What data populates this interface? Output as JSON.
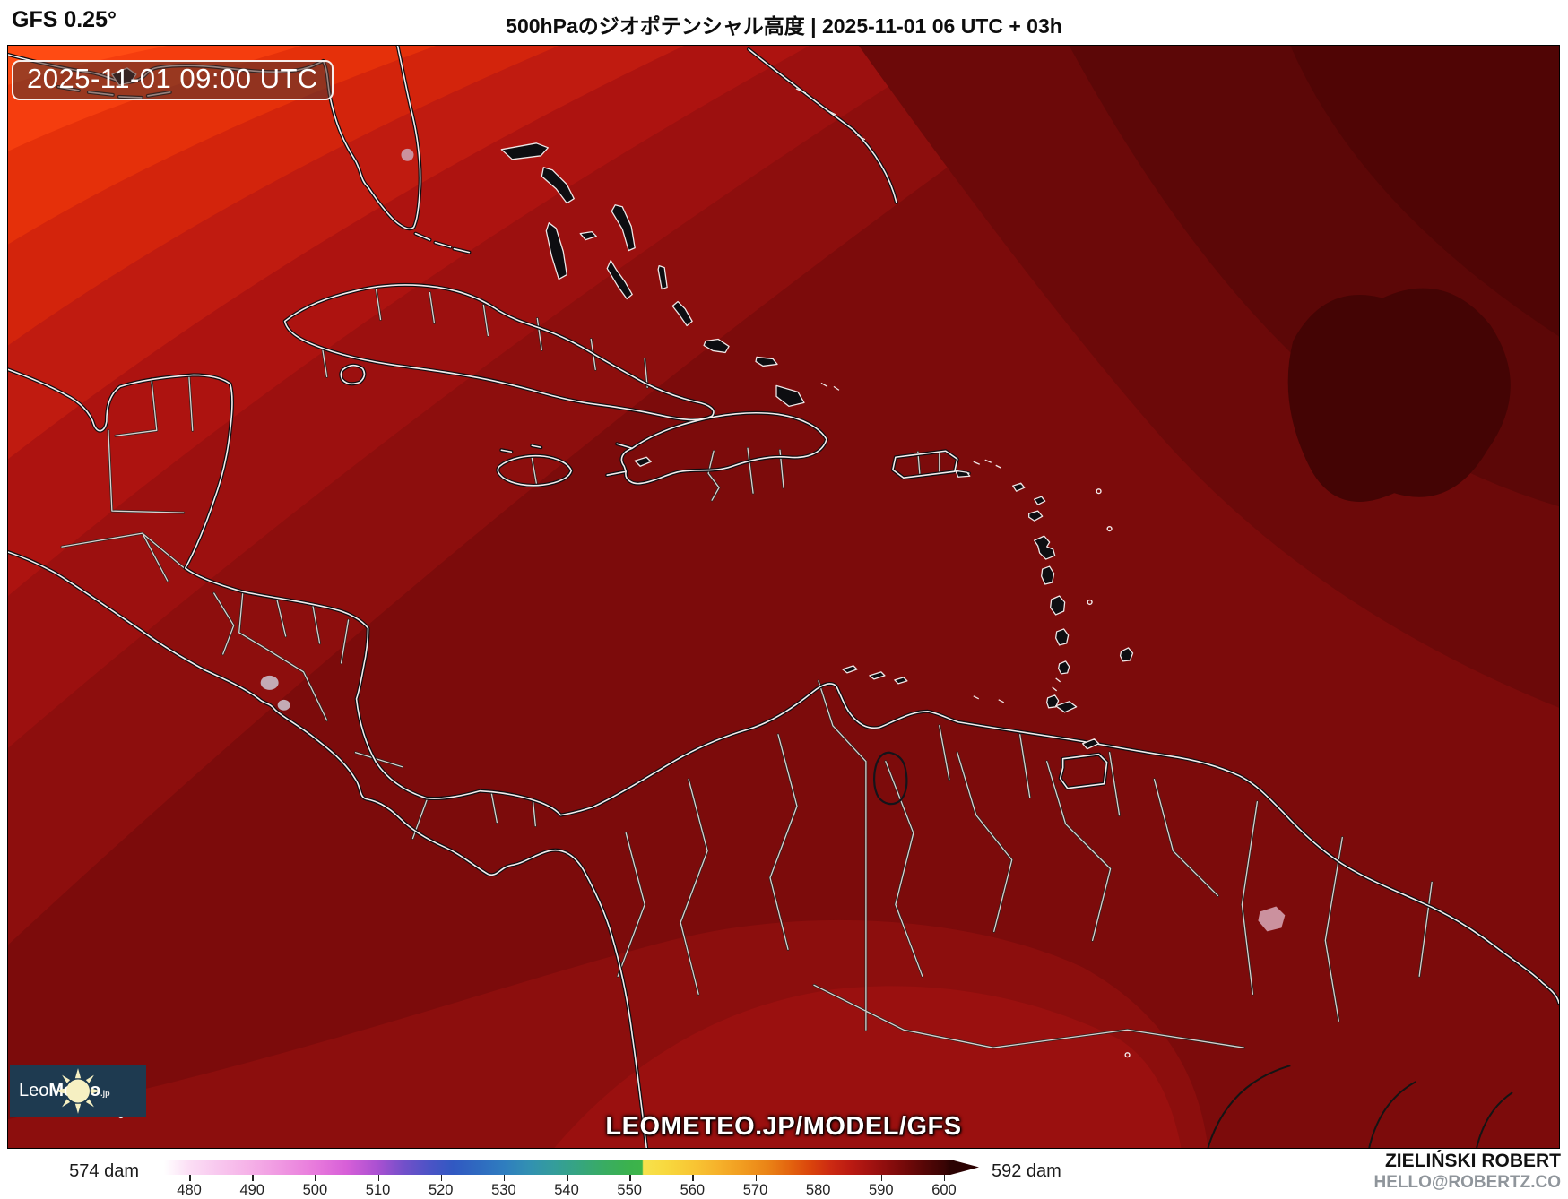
{
  "header": {
    "model_label": "GFS 0.25°",
    "title": "500hPaのジオポテンシャル高度 | 2025-11-01 06 UTC + 03h"
  },
  "map": {
    "timestamp_badge": "2025-11-01 09:00 UTC",
    "watermark": "LEOMETEO.JP/MODEL/GFS",
    "logo": {
      "brand_light": "Leo",
      "brand_bold": "Meteo",
      "suffix": ".jp"
    },
    "field_colors": [
      {
        "name": "base-dark-red",
        "hex": "#7c0b0b"
      },
      {
        "name": "south-belt",
        "hex": "#8c0e0d"
      },
      {
        "name": "south-land-belt",
        "hex": "#9a100f"
      },
      {
        "name": "nw-fan-1",
        "hex": "#8d0e0d"
      },
      {
        "name": "nw-fan-2",
        "hex": "#9c100f"
      },
      {
        "name": "nw-fan-3",
        "hex": "#ad1310"
      },
      {
        "name": "nw-fan-4",
        "hex": "#c01b10"
      },
      {
        "name": "nw-fan-5",
        "hex": "#d3240c"
      },
      {
        "name": "nw-fan-6",
        "hex": "#e5300a"
      },
      {
        "name": "nw-fan-7",
        "hex": "#f53d0e"
      },
      {
        "name": "nw-fan-8",
        "hex": "#ff4b13"
      },
      {
        "name": "ne-dark-1",
        "hex": "#6c0909"
      },
      {
        "name": "ne-dark-2",
        "hex": "#5c0707"
      },
      {
        "name": "ne-corner",
        "hex": "#500505"
      },
      {
        "name": "ne-core-blob",
        "hex": "#440404"
      },
      {
        "name": "lake-pink",
        "hex": "#cb919e"
      },
      {
        "name": "lake-gray",
        "hex": "#c3abb5"
      }
    ]
  },
  "footer": {
    "credit_name": "ZIELIŃSKI ROBERT",
    "credit_email": "HELLO@ROBERTZ.CO",
    "colorbar": {
      "left_label": "574 dam",
      "right_label": "592 dam",
      "unit": "dam",
      "min_value": 476,
      "max_value": 601,
      "ticks": [
        480,
        490,
        500,
        510,
        520,
        530,
        540,
        550,
        560,
        570,
        580,
        590,
        600
      ],
      "stops": [
        [
          476,
          "#ffffff"
        ],
        [
          480,
          "#fbdef5"
        ],
        [
          485,
          "#f8c6ee"
        ],
        [
          490,
          "#f5afe7"
        ],
        [
          495,
          "#ef95e1"
        ],
        [
          500,
          "#e87adc"
        ],
        [
          505,
          "#d75fd8"
        ],
        [
          510,
          "#a950d1"
        ],
        [
          514,
          "#7450ca"
        ],
        [
          518,
          "#4d53c6"
        ],
        [
          522,
          "#3159c2"
        ],
        [
          526,
          "#2f6ac0"
        ],
        [
          530,
          "#2f7dbf"
        ],
        [
          534,
          "#3290b2"
        ],
        [
          538,
          "#349d9b"
        ],
        [
          542,
          "#36a57f"
        ],
        [
          546,
          "#39ac62"
        ],
        [
          550,
          "#3bb24d"
        ],
        [
          552,
          "#3cb449"
        ],
        [
          552.2,
          "#f7e24c"
        ],
        [
          556,
          "#f8d83e"
        ],
        [
          560,
          "#f8c634"
        ],
        [
          564,
          "#f6b22b"
        ],
        [
          568,
          "#f19c20"
        ],
        [
          572,
          "#ea8316"
        ],
        [
          576,
          "#e25f0e"
        ],
        [
          579,
          "#d9420c"
        ],
        [
          582,
          "#cc2a12"
        ],
        [
          585,
          "#bc1b12"
        ],
        [
          588,
          "#a51311"
        ],
        [
          591,
          "#8c0d0d"
        ],
        [
          594,
          "#720909"
        ],
        [
          597,
          "#550606"
        ],
        [
          600,
          "#3a0404"
        ],
        [
          601,
          "#2b0202"
        ]
      ]
    }
  }
}
